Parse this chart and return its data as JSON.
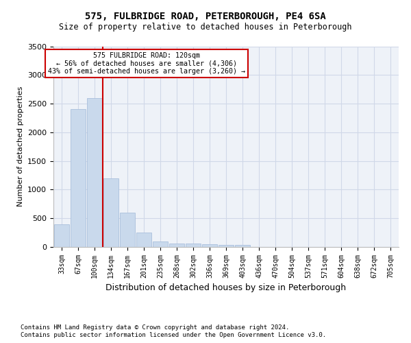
{
  "title1": "575, FULBRIDGE ROAD, PETERBOROUGH, PE4 6SA",
  "title2": "Size of property relative to detached houses in Peterborough",
  "xlabel": "Distribution of detached houses by size in Peterborough",
  "ylabel": "Number of detached properties",
  "categories": [
    "33sqm",
    "67sqm",
    "100sqm",
    "134sqm",
    "167sqm",
    "201sqm",
    "235sqm",
    "268sqm",
    "302sqm",
    "336sqm",
    "369sqm",
    "403sqm",
    "436sqm",
    "470sqm",
    "504sqm",
    "537sqm",
    "571sqm",
    "604sqm",
    "638sqm",
    "672sqm",
    "705sqm"
  ],
  "values": [
    400,
    2400,
    2600,
    1200,
    600,
    250,
    100,
    60,
    55,
    50,
    40,
    40,
    0,
    0,
    0,
    0,
    0,
    0,
    0,
    0,
    0
  ],
  "bar_color": "#c9d9ec",
  "bar_edge_color": "#a0b8d8",
  "vline_color": "#cc0000",
  "vline_pos": 2.5,
  "ylim": [
    0,
    3500
  ],
  "yticks": [
    0,
    500,
    1000,
    1500,
    2000,
    2500,
    3000,
    3500
  ],
  "grid_color": "#d0d8e8",
  "annotation_text": "575 FULBRIDGE ROAD: 120sqm\n← 56% of detached houses are smaller (4,306)\n43% of semi-detached houses are larger (3,260) →",
  "annotation_box_color": "#ffffff",
  "annotation_border_color": "#cc0000",
  "footnote1": "Contains HM Land Registry data © Crown copyright and database right 2024.",
  "footnote2": "Contains public sector information licensed under the Open Government Licence v3.0.",
  "bg_color": "#ffffff",
  "plot_bg_color": "#eef2f8"
}
